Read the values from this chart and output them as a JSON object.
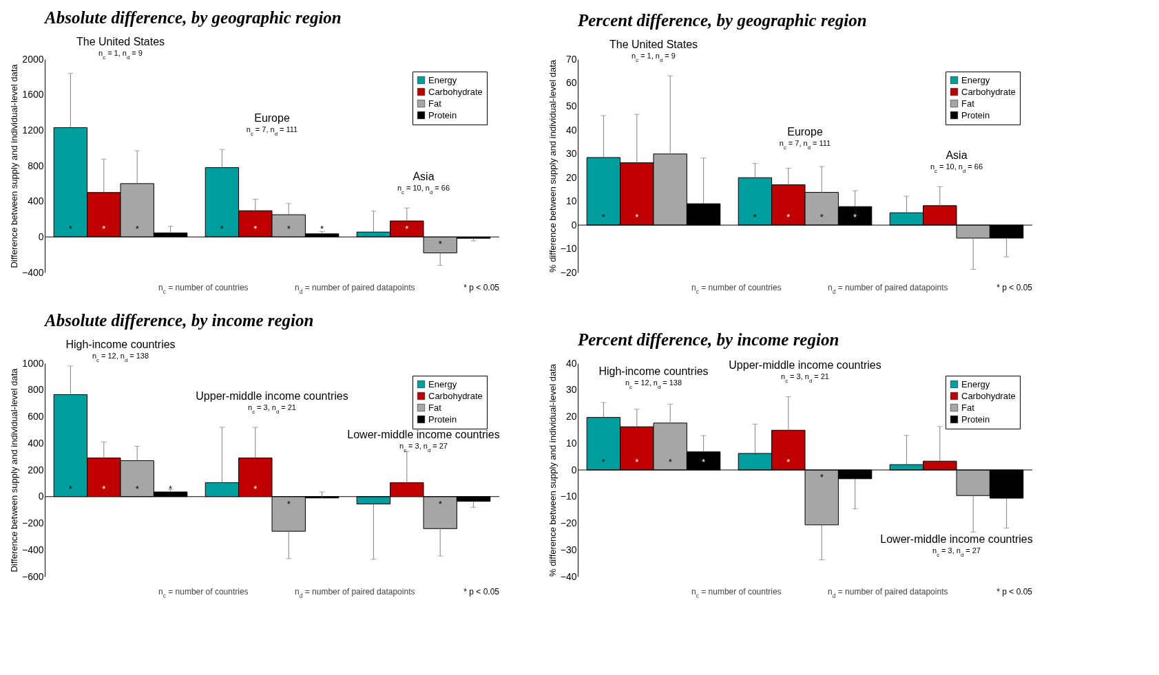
{
  "chart_data": [
    {
      "type": "bar",
      "title": "Absolute difference, by geographic region",
      "ylabel": "Difference between supply and individual-level data",
      "categories": [
        "The United States",
        "Europe",
        "Asia"
      ],
      "ylim": [
        -400,
        2000
      ],
      "yticks": [
        -400,
        0,
        400,
        800,
        1200,
        1600,
        2000
      ],
      "legend": "top right",
      "series": [
        {
          "name": "Energy",
          "color": "#009e9e",
          "values": [
            1230,
            780,
            55
          ],
          "errors": [
            [
              1230,
              1840
            ],
            [
              780,
              985
            ],
            [
              55,
              290
            ]
          ],
          "value_labels": [
            "*",
            "*",
            null
          ]
        },
        {
          "name": "Carbohydrate",
          "color": "#c00000",
          "values": [
            500,
            295,
            180
          ],
          "errors": [
            [
              500,
              875
            ],
            [
              295,
              425
            ],
            [
              180,
              325
            ]
          ],
          "value_labels": [
            "*",
            "*",
            "*"
          ]
        },
        {
          "name": "Fat",
          "color": "#a6a6a6",
          "values": [
            600,
            250,
            -180
          ],
          "errors": [
            [
              600,
              970
            ],
            [
              250,
              375
            ],
            [
              -320,
              -180
            ]
          ],
          "value_labels": [
            "*",
            "*",
            "*"
          ]
        },
        {
          "name": "Protein",
          "color": "#000000",
          "values": [
            45,
            35,
            -15
          ],
          "errors": [
            [
              45,
              120
            ],
            [
              35,
              60
            ],
            [
              -45,
              -15
            ]
          ],
          "value_labels": [
            null,
            "*",
            null
          ]
        }
      ],
      "annotations": [
        "n$_{c}$ = 1, n$_{d}$ = 9",
        "n$_{c}$ = 7, n$_{d}$ = 111",
        "n$_{c}$ = 10, n$_{d}$ = 66",
        "n$_{c}$ = number of countries",
        "n$_{d}$ = number of paired datapoints",
        "* p < 0.05"
      ]
    },
    {
      "type": "bar",
      "title": "Percent difference, by geographic region",
      "ylabel": "% difference between supply and individual-level data",
      "categories": [
        "The United States",
        "Europe",
        "Asia"
      ],
      "ylim": [
        -20,
        70
      ],
      "yticks": [
        -20,
        -10,
        0,
        10,
        20,
        30,
        40,
        50,
        60,
        70
      ],
      "legend": "top right",
      "series": [
        {
          "name": "Energy",
          "color": "#009e9e",
          "values": [
            28.5,
            20,
            5.2
          ],
          "errors": [
            [
              28.5,
              46.2
            ],
            [
              20,
              26
            ],
            [
              5.2,
              12.2
            ]
          ],
          "value_labels": [
            "*",
            "*",
            null
          ]
        },
        {
          "name": "Carbohydrate",
          "color": "#c00000",
          "values": [
            26.3,
            17,
            8.2
          ],
          "errors": [
            [
              26.3,
              46.7
            ],
            [
              17,
              24
            ],
            [
              8.2,
              16.2
            ]
          ],
          "value_labels": [
            "*",
            "*",
            null
          ]
        },
        {
          "name": "Fat",
          "color": "#a6a6a6",
          "values": [
            30,
            13.8,
            -5.5
          ],
          "errors": [
            [
              30,
              63
            ],
            [
              13.8,
              24.7
            ],
            [
              -18.7,
              -5.5
            ]
          ],
          "value_labels": [
            null,
            "*",
            null
          ]
        },
        {
          "name": "Protein",
          "color": "#000000",
          "values": [
            9,
            7.8,
            -5.5
          ],
          "errors": [
            [
              9,
              28.3
            ],
            [
              7.8,
              14.5
            ],
            [
              -13.4,
              -5.5
            ]
          ],
          "value_labels": [
            null,
            "*",
            null
          ]
        }
      ],
      "annotations": [
        "n$_{c}$ = 1, n$_{d}$ = 9",
        "n$_{c}$ = 7, n$_{d}$ = 111",
        "n$_{c}$ = 10, n$_{d}$ = 66",
        "n$_{c}$ = number of countries",
        "n$_{d}$ = number of paired datapoints",
        "* p < 0.05"
      ]
    },
    {
      "type": "bar",
      "title": "Absolute difference, by income region",
      "ylabel": "Difference between supply and individual-level data",
      "categories": [
        "High-income countries",
        "Upper-middle income countries",
        "Lower-middle income countries"
      ],
      "ylim": [
        -600,
        1000
      ],
      "yticks": [
        -600,
        -400,
        -200,
        0,
        200,
        400,
        600,
        800,
        1000
      ],
      "legend": "top right",
      "series": [
        {
          "name": "Energy",
          "color": "#009e9e",
          "values": [
            765,
            105,
            -55
          ],
          "errors": [
            [
              765,
              980
            ],
            [
              105,
              520
            ],
            [
              -470,
              -55
            ]
          ],
          "value_labels": [
            "*",
            null,
            null
          ]
        },
        {
          "name": "Carbohydrate",
          "color": "#c00000",
          "values": [
            290,
            290,
            105
          ],
          "errors": [
            [
              290,
              410
            ],
            [
              290,
              520
            ],
            [
              105,
              340
            ]
          ],
          "value_labels": [
            "*",
            "*",
            null
          ]
        },
        {
          "name": "Fat",
          "color": "#a6a6a6",
          "values": [
            270,
            -260,
            -240
          ],
          "errors": [
            [
              270,
              378
            ],
            [
              -465,
              -260
            ],
            [
              -445,
              -240
            ]
          ],
          "value_labels": [
            "*",
            "*",
            "*"
          ]
        },
        {
          "name": "Protein",
          "color": "#000000",
          "values": [
            35,
            -10,
            -35
          ],
          "errors": [
            [
              35,
              55
            ],
            [
              -10,
              35
            ],
            [
              -80,
              -35
            ]
          ],
          "value_labels": [
            "*",
            null,
            null
          ]
        }
      ],
      "annotations": [
        "n$_{c}$ = 12, n$_{d}$ = 138",
        "n$_{c}$ = 3, n$_{d}$ = 21",
        "n$_{c}$ = 3, n$_{d}$ = 27",
        "n$_{c}$ = number of countries",
        "n$_{d}$ = number of paired datapoints",
        "* p < 0.05"
      ]
    },
    {
      "type": "bar",
      "title": "Percent difference, by income region",
      "ylabel": "% difference between supply and individual-level data",
      "categories": [
        "High-income countries",
        "Upper-middle income countries",
        "Lower-middle income countries"
      ],
      "ylim": [
        -40,
        40
      ],
      "yticks": [
        -40,
        -30,
        -20,
        -10,
        0,
        10,
        20,
        30,
        40
      ],
      "legend": "top right",
      "series": [
        {
          "name": "Energy",
          "color": "#009e9e",
          "values": [
            19.7,
            6.2,
            2
          ],
          "errors": [
            [
              19.7,
              25.3
            ],
            [
              6.2,
              17.2
            ],
            [
              2,
              13
            ]
          ],
          "value_labels": [
            "*",
            null,
            null
          ]
        },
        {
          "name": "Carbohydrate",
          "color": "#c00000",
          "values": [
            16.2,
            14.9,
            3.3
          ],
          "errors": [
            [
              16.2,
              22.8
            ],
            [
              14.9,
              27.5
            ],
            [
              3.3,
              16.3
            ]
          ],
          "value_labels": [
            "*",
            "*",
            null
          ]
        },
        {
          "name": "Fat",
          "color": "#a6a6a6",
          "values": [
            17.6,
            -20.6,
            -9.6
          ],
          "errors": [
            [
              17.6,
              24.7
            ],
            [
              -33.7,
              -20.6
            ],
            [
              -23.3,
              -9.6
            ]
          ],
          "value_labels": [
            "*",
            "*",
            null
          ]
        },
        {
          "name": "Protein",
          "color": "#000000",
          "values": [
            6.8,
            -3.3,
            -10.6
          ],
          "errors": [
            [
              6.8,
              12.9
            ],
            [
              -14.6,
              -3.3
            ],
            [
              -21.8,
              -10.6
            ]
          ],
          "value_labels": [
            "*",
            null,
            null
          ]
        }
      ],
      "annotations": [
        "n$_{c}$ = 12, n$_{d}$ = 138",
        "n$_{c}$ = 3, n$_{d}$ = 21",
        "n$_{c}$ = 3, n$_{d}$ = 27",
        "n$_{c}$ = number of countries",
        "n$_{d}$ = number of paired datapoints",
        "* p < 0.05"
      ]
    }
  ]
}
